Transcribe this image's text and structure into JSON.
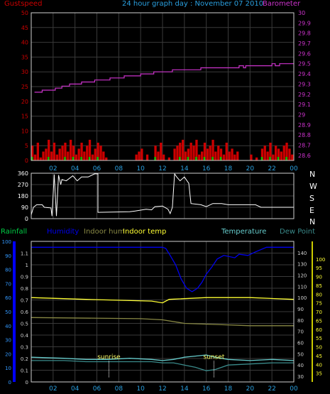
{
  "header": {
    "left_label": "Gustspeed",
    "title": "24 hour graph day : November 07 2010",
    "right_label": "Barometer"
  },
  "wind_dir_letters": [
    "N",
    "W",
    "S",
    "E",
    "N"
  ],
  "legend": {
    "rainfall": "Rainfall",
    "humidity": "Humidity",
    "indoor_hum": "Indoor hum",
    "indoor_temp": "Indoor temp",
    "temperature": "Temperature",
    "dew_point": "Dew Point"
  },
  "colors": {
    "gust": "#cc0000",
    "gust_avg": "#00cc00",
    "barometer": "#cc33cc",
    "axis_right_baro": "#cc33cc",
    "direction": "#ffffff",
    "rainfall": "#0000ff",
    "humidity": "#0000ee",
    "indoor_hum": "#888844",
    "indoor_temp": "#ffff33",
    "temperature": "#66cccc",
    "dew_point": "#3a8a8a",
    "x_ticks": "#2aa0e0",
    "grid": "#3a3a3a"
  },
  "chart_data": [
    {
      "type": "bar",
      "title": "24 hour graph day : November 07 2010",
      "series": [
        {
          "name": "Gustspeed",
          "axis": "left",
          "ylim": [
            0,
            50
          ],
          "values": [
            5,
            2,
            6,
            1,
            3,
            4,
            7,
            3,
            6,
            2,
            4,
            5,
            6,
            3,
            7,
            5,
            2,
            4,
            6,
            3,
            5,
            7,
            2,
            4,
            6,
            5,
            3,
            1,
            0,
            0,
            0,
            0,
            0,
            0,
            0,
            0,
            0,
            0,
            2,
            3,
            4,
            0,
            2,
            0,
            0,
            5,
            3,
            6,
            2,
            0,
            1,
            0,
            4,
            5,
            6,
            7,
            3,
            4,
            6,
            5,
            7,
            2,
            3,
            6,
            4,
            5,
            7,
            3,
            5,
            4,
            2,
            6,
            3,
            4,
            2,
            3,
            0,
            0,
            0,
            0,
            2,
            0,
            1,
            0,
            4,
            5,
            3,
            6,
            2,
            5,
            4,
            3,
            5,
            6,
            4,
            2
          ]
        },
        {
          "name": "Barometer",
          "axis": "right",
          "type": "line",
          "ylim": [
            28.55,
            30.0
          ],
          "points": [
            [
              0.3,
              29.22
            ],
            [
              1.0,
              29.22
            ],
            [
              1.0,
              29.24
            ],
            [
              2.2,
              29.24
            ],
            [
              2.2,
              29.26
            ],
            [
              2.8,
              29.26
            ],
            [
              2.8,
              29.28
            ],
            [
              3.5,
              29.28
            ],
            [
              3.5,
              29.3
            ],
            [
              4.6,
              29.3
            ],
            [
              4.6,
              29.32
            ],
            [
              5.8,
              29.32
            ],
            [
              5.8,
              29.34
            ],
            [
              7.2,
              29.34
            ],
            [
              7.2,
              29.36
            ],
            [
              8.5,
              29.36
            ],
            [
              8.5,
              29.38
            ],
            [
              10.0,
              29.38
            ],
            [
              10.0,
              29.4
            ],
            [
              11.2,
              29.4
            ],
            [
              11.2,
              29.42
            ],
            [
              12.9,
              29.42
            ],
            [
              12.9,
              29.44
            ],
            [
              15.5,
              29.44
            ],
            [
              15.5,
              29.46
            ],
            [
              19.0,
              29.46
            ],
            [
              19.0,
              29.48
            ],
            [
              19.4,
              29.48
            ],
            [
              19.4,
              29.46
            ],
            [
              19.6,
              29.46
            ],
            [
              19.6,
              29.48
            ],
            [
              22.0,
              29.48
            ],
            [
              22.0,
              29.5
            ],
            [
              22.3,
              29.5
            ],
            [
              22.3,
              29.48
            ],
            [
              22.7,
              29.48
            ],
            [
              22.7,
              29.5
            ],
            [
              24.0,
              29.5
            ]
          ]
        }
      ],
      "x_ticks": [
        "02",
        "04",
        "06",
        "08",
        "10",
        "12",
        "14",
        "16",
        "18",
        "20",
        "22",
        "00"
      ],
      "y_left_ticks": [
        "0",
        "5",
        "10",
        "15",
        "20",
        "25",
        "30",
        "35",
        "40",
        "45",
        "50"
      ],
      "y_right_ticks": [
        "28.6",
        "28.7",
        "28.8",
        "28.9",
        "29",
        "29.1",
        "29.2",
        "29.3",
        "29.4",
        "29.5",
        "29.6",
        "29.7",
        "29.8",
        "29.9",
        "30"
      ]
    },
    {
      "type": "line",
      "title": "",
      "series": [
        {
          "name": "",
          "points": [
            [
              0.0,
              30
            ],
            [
              0.2,
              90
            ],
            [
              0.5,
              110
            ],
            [
              1.0,
              110
            ],
            [
              1.2,
              90
            ],
            [
              1.8,
              85
            ],
            [
              1.9,
              20
            ],
            [
              2.1,
              350
            ],
            [
              2.3,
              20
            ],
            [
              2.5,
              345
            ],
            [
              2.7,
              270
            ],
            [
              2.8,
              310
            ],
            [
              3.2,
              300
            ],
            [
              3.8,
              340
            ],
            [
              4.2,
              300
            ],
            [
              4.6,
              330
            ],
            [
              5.2,
              330
            ],
            [
              5.8,
              355
            ],
            [
              6.1,
              355
            ],
            [
              6.1,
              50
            ],
            [
              9.0,
              55
            ],
            [
              9.5,
              60
            ],
            [
              10.5,
              75
            ],
            [
              11.0,
              70
            ],
            [
              11.3,
              95
            ],
            [
              12.0,
              100
            ],
            [
              12.5,
              75
            ],
            [
              12.7,
              40
            ],
            [
              12.9,
              90
            ],
            [
              13.1,
              355
            ],
            [
              13.3,
              330
            ],
            [
              13.6,
              300
            ],
            [
              14.0,
              330
            ],
            [
              14.4,
              280
            ],
            [
              14.6,
              120
            ],
            [
              15.5,
              110
            ],
            [
              16.0,
              95
            ],
            [
              16.6,
              120
            ],
            [
              17.4,
              120
            ],
            [
              18.0,
              110
            ],
            [
              20.5,
              110
            ],
            [
              21.0,
              90
            ],
            [
              24.0,
              90
            ]
          ]
        }
      ],
      "ylim": [
        0,
        360
      ],
      "y_ticks": [
        "0",
        "90",
        "180",
        "270",
        "360"
      ],
      "x_ticks": [
        "02",
        "04",
        "06",
        "08",
        "10",
        "12",
        "14",
        "16",
        "18",
        "20",
        "22",
        "00"
      ]
    },
    {
      "type": "line",
      "title": "",
      "series": [
        {
          "name": "Humidity",
          "axis": "left-mid",
          "ylim": [
            0,
            1.2
          ],
          "points": [
            [
              0,
              1.15
            ],
            [
              12,
              1.15
            ],
            [
              12.3,
              1.14
            ],
            [
              12.7,
              1.08
            ],
            [
              13.2,
              1.0
            ],
            [
              13.7,
              0.88
            ],
            [
              14.2,
              0.8
            ],
            [
              14.7,
              0.77
            ],
            [
              15.2,
              0.8
            ],
            [
              15.6,
              0.85
            ],
            [
              16.0,
              0.92
            ],
            [
              16.5,
              0.98
            ],
            [
              17.0,
              1.05
            ],
            [
              17.6,
              1.08
            ],
            [
              18.6,
              1.06
            ],
            [
              19.0,
              1.09
            ],
            [
              19.8,
              1.08
            ],
            [
              20.5,
              1.11
            ],
            [
              21.5,
              1.15
            ],
            [
              24,
              1.15
            ]
          ]
        },
        {
          "name": "Indoor hum",
          "axis": "left-mid",
          "ylim": [
            0,
            1.2
          ],
          "points": [
            [
              0,
              0.55
            ],
            [
              10,
              0.54
            ],
            [
              12,
              0.53
            ],
            [
              14,
              0.5
            ],
            [
              17,
              0.49
            ],
            [
              20,
              0.48
            ],
            [
              24,
              0.48
            ]
          ]
        },
        {
          "name": "Indoor temp",
          "axis": "right-outer",
          "ylim": [
            30,
            110
          ],
          "points": [
            [
              0,
              78
            ],
            [
              5,
              77
            ],
            [
              11,
              76
            ],
            [
              12,
              75
            ],
            [
              12.6,
              77
            ],
            [
              16,
              78
            ],
            [
              20,
              78
            ],
            [
              24,
              77
            ]
          ]
        },
        {
          "name": "Temperature",
          "axis": "right-inner",
          "ylim": [
            25,
            150
          ],
          "points": [
            [
              0,
              47
            ],
            [
              3,
              46
            ],
            [
              5,
              45
            ],
            [
              7,
              45
            ],
            [
              9,
              46
            ],
            [
              11,
              45
            ],
            [
              12,
              44
            ],
            [
              13,
              45
            ],
            [
              14,
              47
            ],
            [
              15,
              48
            ],
            [
              16,
              49
            ],
            [
              16.8,
              47
            ],
            [
              18,
              45
            ],
            [
              20,
              44
            ],
            [
              22,
              45
            ],
            [
              24,
              44
            ]
          ]
        },
        {
          "name": "Dew Point",
          "axis": "right-inner",
          "ylim": [
            25,
            150
          ],
          "points": [
            [
              0,
              44
            ],
            [
              3,
              44
            ],
            [
              5,
              43
            ],
            [
              7,
              43
            ],
            [
              9,
              43
            ],
            [
              11,
              43
            ],
            [
              12,
              42
            ],
            [
              13,
              42
            ],
            [
              14,
              40
            ],
            [
              15,
              38
            ],
            [
              16,
              35
            ],
            [
              16.8,
              36
            ],
            [
              18,
              40
            ],
            [
              20,
              41
            ],
            [
              22,
              42
            ],
            [
              24,
              42
            ]
          ]
        },
        {
          "name": "Rainfall",
          "axis": "left-outer",
          "ylim": [
            0,
            100
          ],
          "points": [
            [
              0,
              0
            ],
            [
              24,
              0
            ]
          ]
        }
      ],
      "annotations": [
        {
          "text": "sunrise",
          "x": 7.1
        },
        {
          "text": "sunset",
          "x": 16.7
        }
      ],
      "y_left_outer_ticks": [
        "0",
        "10",
        "20",
        "30",
        "40",
        "50",
        "60",
        "70",
        "80",
        "90",
        "100"
      ],
      "y_left_mid_ticks": [
        "0",
        "0.1",
        "0.2",
        "0.3",
        "0.4",
        "0.5",
        "0.6",
        "0.7",
        "0.8",
        "0.9",
        "1",
        "1.1"
      ],
      "y_right_inner_ticks": [
        "30",
        "40",
        "50",
        "60",
        "70",
        "80",
        "90",
        "100",
        "110",
        "120",
        "130",
        "140"
      ],
      "y_right_outer_ticks": [
        "35",
        "40",
        "45",
        "50",
        "55",
        "60",
        "65",
        "70",
        "75",
        "80",
        "85",
        "90",
        "95",
        "100"
      ],
      "x_ticks": [
        "02",
        "04",
        "06",
        "08",
        "10",
        "12",
        "14",
        "16",
        "18",
        "20",
        "22",
        "00"
      ]
    }
  ]
}
